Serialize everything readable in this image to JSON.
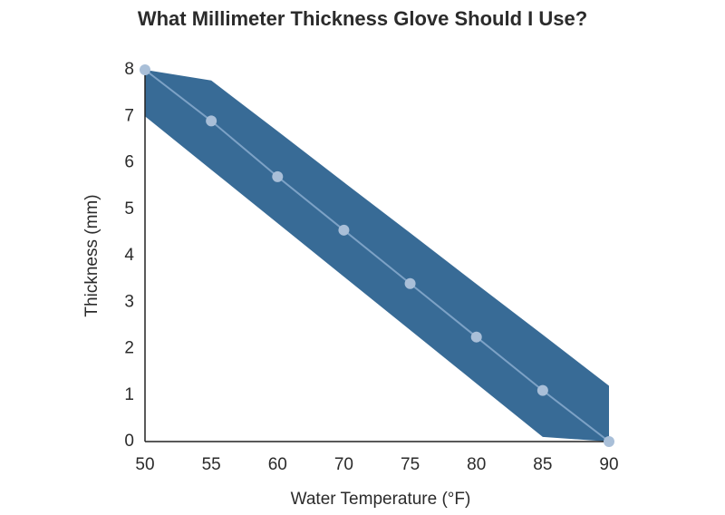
{
  "chart_data": {
    "type": "line",
    "title": "What Millimeter Thickness Glove Should I Use?",
    "x_label": "Water Temperature (°F)",
    "y_label": "Thickness (mm)",
    "categories": [
      "50",
      "55",
      "60",
      "70",
      "75",
      "80",
      "85",
      "90"
    ],
    "values": [
      8,
      6.9,
      5.7,
      4.55,
      3.4,
      2.25,
      1.1,
      0
    ],
    "line_color": "#7da2c6",
    "marker_color": "#a9bfd8",
    "band": {
      "upper": [
        8,
        7.77,
        6.68,
        5.58,
        4.49,
        3.39,
        2.3,
        1.2
      ],
      "lower": [
        7,
        5.85,
        4.7,
        3.55,
        2.4,
        1.25,
        0.1,
        0
      ],
      "color": "#386b96"
    },
    "ylim": [
      0,
      8
    ],
    "yticks": [
      0,
      1,
      2,
      3,
      4,
      5,
      6,
      7,
      8
    ]
  }
}
